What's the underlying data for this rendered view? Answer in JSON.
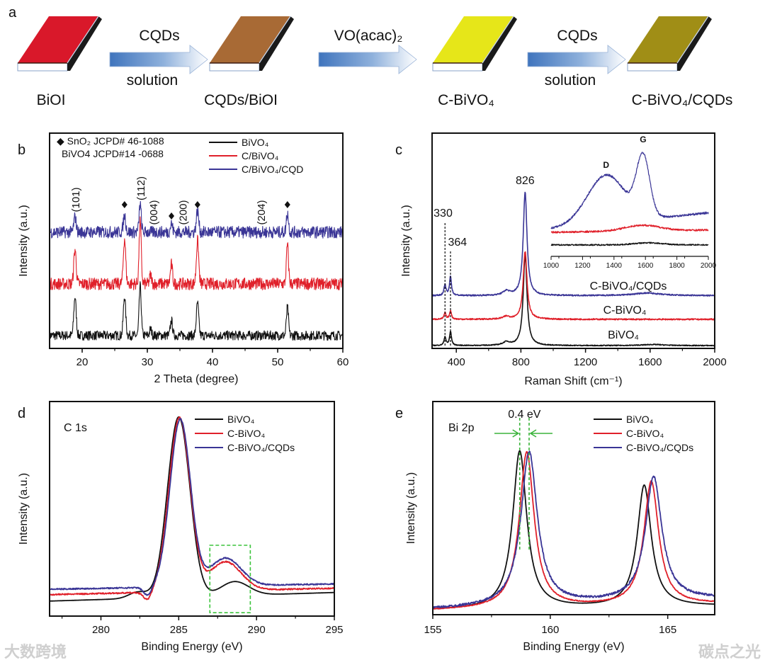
{
  "scheme": {
    "panel": "a",
    "steps": [
      {
        "label": "BiOI",
        "color": "#d9182a"
      },
      {
        "label": "CQDs/BiOI",
        "color": "#a86a35"
      },
      {
        "label": "C-BiVO₄",
        "color": "#e6e619"
      },
      {
        "label": "C-BiVO₄/CQDs",
        "color": "#a08e16"
      }
    ],
    "arrows": [
      {
        "top": "CQDs",
        "bottom": "solution"
      },
      {
        "top": "VO(acac)₂",
        "bottom": ""
      },
      {
        "top": "CQDs",
        "bottom": "solution"
      }
    ]
  },
  "chart_data": [
    {
      "panel": "b",
      "type": "line",
      "title": "",
      "xlabel": "2 Theta (degree)",
      "ylabel": "Intensity (a.u.)",
      "xlim": [
        15,
        60
      ],
      "ylim": [
        0,
        100
      ],
      "xticks": [
        20,
        30,
        40,
        50,
        60
      ],
      "grid": false,
      "legend_position": "top-right",
      "notes": [
        "◆ SnO₂  JCPD# 46-1088",
        "BiVO4 JCPD#14 -0688"
      ],
      "hkl": [
        {
          "text": "(101)",
          "x": 19
        },
        {
          "text": "(112)",
          "x": 29
        },
        {
          "text": "(004)",
          "x": 31
        },
        {
          "text": "(200)",
          "x": 35.5
        },
        {
          "text": "(204)",
          "x": 47.5
        }
      ],
      "sno2_markers": [
        26.5,
        33.7,
        37.7,
        51.5
      ],
      "series": [
        {
          "name": "BiVO₄",
          "color": "#111111",
          "baseline": 6,
          "noise": 2.2,
          "shape": "gauss",
          "peaks": [
            [
              18.9,
              18,
              0.18
            ],
            [
              26.5,
              18,
              0.18
            ],
            [
              28.9,
              23,
              0.16
            ],
            [
              30.5,
              3,
              0.15
            ],
            [
              33.7,
              7,
              0.16
            ],
            [
              37.7,
              15,
              0.18
            ],
            [
              51.5,
              13,
              0.16
            ]
          ]
        },
        {
          "name": "C/BiVO₄",
          "color": "#e0202a",
          "baseline": 30,
          "noise": 2.8,
          "shape": "gauss",
          "peaks": [
            [
              18.9,
              16,
              0.18
            ],
            [
              26.5,
              21,
              0.18
            ],
            [
              28.9,
              29,
              0.16
            ],
            [
              30.5,
              4,
              0.15
            ],
            [
              33.7,
              9,
              0.16
            ],
            [
              37.7,
              20,
              0.18
            ],
            [
              51.5,
              18,
              0.16
            ]
          ]
        },
        {
          "name": "C/BiVO₄/CQD",
          "color": "#3a3596",
          "baseline": 54,
          "noise": 2.8,
          "shape": "gauss",
          "peaks": [
            [
              18.9,
              7,
              0.18
            ],
            [
              26.5,
              8,
              0.18
            ],
            [
              28.9,
              13,
              0.16
            ],
            [
              33.7,
              4,
              0.16
            ],
            [
              37.7,
              10,
              0.18
            ],
            [
              51.5,
              9,
              0.16
            ]
          ]
        }
      ]
    },
    {
      "panel": "c",
      "type": "line",
      "xlabel": "Raman Shift (cm⁻¹)",
      "ylabel": "Intensity (a.u.)",
      "xlim": [
        250,
        2000
      ],
      "ylim": [
        0,
        100
      ],
      "xticks": [
        400,
        800,
        1200,
        1600,
        2000
      ],
      "grid": false,
      "peak_labels": [
        {
          "text": "826",
          "x": 826
        },
        {
          "text": "330",
          "x": 330
        },
        {
          "text": "364",
          "x": 364
        }
      ],
      "series": [
        {
          "name": "BiVO₄",
          "color": "#111111",
          "baseline": 1.3,
          "noise": 0.2,
          "shape": "lor",
          "peaks": [
            [
              330,
              4,
              7
            ],
            [
              364,
              6.5,
              7
            ],
            [
              710,
              1.5,
              25
            ],
            [
              826,
              42,
              14
            ],
            [
              1620,
              0.5,
              80
            ]
          ]
        },
        {
          "name": "C-BiVO₄",
          "color": "#e0202a",
          "baseline": 13.5,
          "noise": 0.3,
          "shape": "lor",
          "peaks": [
            [
              330,
              3,
              7
            ],
            [
              364,
              4,
              7
            ],
            [
              710,
              1.2,
              25
            ],
            [
              826,
              31.5,
              14
            ]
          ]
        },
        {
          "name": "C-BiVO₄/CQDs",
          "color": "#3a3596",
          "baseline": 24.5,
          "noise": 0.3,
          "shape": "lor",
          "peaks": [
            [
              330,
              5,
              7
            ],
            [
              364,
              9,
              7
            ],
            [
              710,
              2,
              25
            ],
            [
              826,
              48,
              14
            ],
            [
              1580,
              1.2,
              100
            ]
          ]
        }
      ],
      "inset": {
        "xlim": [
          1000,
          2000
        ],
        "ylim": [
          0,
          100
        ],
        "xticks": [
          1000,
          1200,
          1400,
          1600,
          1800,
          2000
        ],
        "band_labels": [
          {
            "text": "D",
            "x": 1350
          },
          {
            "text": "G",
            "x": 1585
          }
        ],
        "series": [
          {
            "name": "BiVO₄",
            "color": "#111111",
            "baseline": 10,
            "noise": 0.6,
            "shape": "gauss",
            "peaks": [
              [
                1620,
                1.8,
                90
              ]
            ]
          },
          {
            "name": "C-BiVO₄",
            "color": "#e0202a",
            "baseline": [
              21,
              23
            ],
            "noise": 0.8,
            "shape": "gauss",
            "peaks": [
              [
                1580,
                5,
                110
              ]
            ]
          },
          {
            "name": "C-BiVO₄/CQDs",
            "color": "#3a3596",
            "baseline": [
              24,
              38
            ],
            "noise": 0.9,
            "shape": "gauss",
            "peaks": [
              [
                1350,
                42,
                120
              ],
              [
                1585,
                52,
                42
              ]
            ]
          }
        ]
      }
    },
    {
      "panel": "d",
      "type": "line",
      "inner_title": "C 1s",
      "xlabel": "Binding Energy (eV)",
      "ylabel": "Intensity (a.u.)",
      "xlim": [
        276.7,
        295
      ],
      "ylim": [
        0,
        100
      ],
      "xticks": [
        280,
        285,
        290,
        295
      ],
      "grid": false,
      "legend_position": "top-right",
      "highlight_box": {
        "x": [
          287,
          289.6
        ],
        "y": [
          1.6,
          33
        ]
      },
      "series": [
        {
          "name": "BiVO₄",
          "color": "#111111",
          "baseline": [
            7,
            11
          ],
          "noise": 0,
          "shape": "gauss",
          "peaks": [
            [
              285.0,
              84,
              0.72
            ],
            [
              282.4,
              3,
              0.6
            ],
            [
              288.6,
              6.5,
              0.9
            ]
          ]
        },
        {
          "name": "C-BiVO₄",
          "color": "#e0202a",
          "baseline": [
            10,
            13
          ],
          "noise": 0.3,
          "shape": "gauss",
          "peaks": [
            [
              285.05,
              81,
              0.68
            ],
            [
              283.0,
              -4,
              0.25
            ],
            [
              288.0,
              13.5,
              1.0
            ]
          ]
        },
        {
          "name": "C-BiVO₄/CQDs",
          "color": "#3a3596",
          "baseline": [
            12.5,
            15
          ],
          "noise": 0.3,
          "shape": "gauss",
          "peaks": [
            [
              285.1,
              78,
              0.66
            ],
            [
              283.0,
              -4,
              0.25
            ],
            [
              288.0,
              13,
              1.0
            ]
          ]
        }
      ]
    },
    {
      "panel": "e",
      "type": "line",
      "inner_title": "Bi 2p",
      "xlabel": "Binding Energy (eV)",
      "ylabel": "Intensity (a.u.)",
      "xlim": [
        155,
        167
      ],
      "ylim": [
        0,
        100
      ],
      "xticks": [
        155,
        160,
        165
      ],
      "grid": false,
      "legend_position": "top-right",
      "shift_annotation": {
        "text": "0.4 eV",
        "x": [
          158.7,
          159.1
        ],
        "color": "#3cb43c"
      },
      "series": [
        {
          "name": "BiVO₄",
          "color": "#111111",
          "baseline": [
            2,
            4
          ],
          "noise": 0,
          "shape": "lor",
          "peaks": [
            [
              158.7,
              74,
              0.36
            ],
            [
              164.0,
              57,
              0.36
            ]
          ]
        },
        {
          "name": "C-BiVO₄",
          "color": "#e0202a",
          "baseline": [
            2,
            5
          ],
          "noise": 0.2,
          "shape": "lor",
          "peaks": [
            [
              159.0,
              73,
              0.38
            ],
            [
              164.3,
              58,
              0.38
            ]
          ]
        },
        {
          "name": "C-BiVO₄/CQDs",
          "color": "#3a3596",
          "baseline": [
            2.5,
            7.5
          ],
          "noise": 0.5,
          "shape": "lor",
          "peaks": [
            [
              159.1,
              72,
              0.42
            ],
            [
              164.4,
              58,
              0.42
            ]
          ]
        }
      ]
    }
  ],
  "watermarks": [
    "大数跨境",
    "碳点之光"
  ]
}
